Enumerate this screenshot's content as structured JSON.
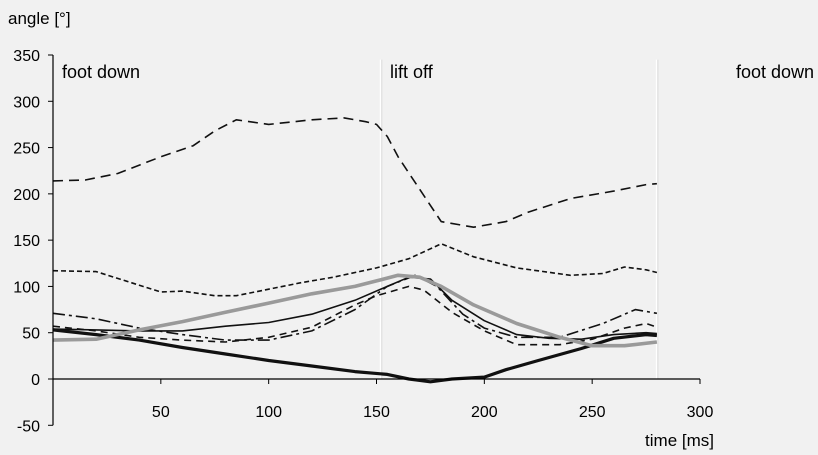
{
  "chart_data": {
    "type": "line",
    "title": "",
    "ylabel": "angle [°]",
    "xlabel": "time [ms]",
    "xlim": [
      0,
      300
    ],
    "ylim": [
      -50,
      350
    ],
    "xticks": [
      50,
      100,
      150,
      200,
      250,
      300
    ],
    "yticks": [
      350,
      300,
      250,
      200,
      150,
      100,
      50,
      0,
      -50
    ],
    "grid": false,
    "annotations": [
      {
        "text": "foot down",
        "x": 5
      },
      {
        "text": "lift off",
        "x": 155
      },
      {
        "text": "foot down",
        "x": 280
      }
    ],
    "event_lines": [
      152,
      280
    ],
    "series": [
      {
        "style": "long-dash",
        "color": "#111111",
        "points": [
          [
            0,
            214
          ],
          [
            15,
            215
          ],
          [
            30,
            222
          ],
          [
            50,
            240
          ],
          [
            65,
            252
          ],
          [
            75,
            268
          ],
          [
            85,
            280
          ],
          [
            100,
            275
          ],
          [
            120,
            280
          ],
          [
            135,
            282
          ],
          [
            145,
            278
          ],
          [
            150,
            275
          ],
          [
            155,
            262
          ],
          [
            160,
            240
          ],
          [
            170,
            205
          ],
          [
            180,
            170
          ],
          [
            195,
            164
          ],
          [
            210,
            170
          ],
          [
            220,
            180
          ],
          [
            240,
            195
          ],
          [
            260,
            203
          ],
          [
            275,
            210
          ],
          [
            280,
            211
          ]
        ]
      },
      {
        "style": "short-dash",
        "color": "#111111",
        "points": [
          [
            0,
            117
          ],
          [
            20,
            116
          ],
          [
            35,
            105
          ],
          [
            50,
            94
          ],
          [
            60,
            95
          ],
          [
            75,
            90
          ],
          [
            85,
            90
          ],
          [
            100,
            97
          ],
          [
            115,
            104
          ],
          [
            130,
            110
          ],
          [
            150,
            120
          ],
          [
            165,
            130
          ],
          [
            180,
            146
          ],
          [
            195,
            132
          ],
          [
            215,
            120
          ],
          [
            240,
            112
          ],
          [
            255,
            114
          ],
          [
            265,
            121
          ],
          [
            275,
            118
          ],
          [
            280,
            115
          ]
        ]
      },
      {
        "style": "solid",
        "color": "#111111",
        "points": [
          [
            0,
            54
          ],
          [
            20,
            53
          ],
          [
            40,
            52
          ],
          [
            60,
            52
          ],
          [
            80,
            57
          ],
          [
            100,
            61
          ],
          [
            120,
            70
          ],
          [
            140,
            85
          ],
          [
            155,
            100
          ],
          [
            165,
            110
          ],
          [
            175,
            108
          ],
          [
            185,
            85
          ],
          [
            200,
            63
          ],
          [
            215,
            48
          ],
          [
            230,
            44
          ],
          [
            245,
            43
          ],
          [
            260,
            48
          ],
          [
            275,
            50
          ],
          [
            280,
            49
          ]
        ]
      },
      {
        "style": "dash-dot",
        "color": "#111111",
        "points": [
          [
            0,
            71
          ],
          [
            20,
            65
          ],
          [
            40,
            55
          ],
          [
            60,
            48
          ],
          [
            80,
            42
          ],
          [
            100,
            42
          ],
          [
            120,
            52
          ],
          [
            140,
            75
          ],
          [
            155,
            100
          ],
          [
            168,
            112
          ],
          [
            178,
            100
          ],
          [
            190,
            70
          ],
          [
            200,
            55
          ],
          [
            215,
            45
          ],
          [
            235,
            45
          ],
          [
            255,
            60
          ],
          [
            270,
            75
          ],
          [
            280,
            71
          ]
        ]
      },
      {
        "style": "dash",
        "color": "#111111",
        "points": [
          [
            0,
            57
          ],
          [
            20,
            52
          ],
          [
            40,
            45
          ],
          [
            60,
            42
          ],
          [
            80,
            40
          ],
          [
            100,
            45
          ],
          [
            120,
            56
          ],
          [
            140,
            80
          ],
          [
            150,
            90
          ],
          [
            165,
            100
          ],
          [
            172,
            96
          ],
          [
            185,
            72
          ],
          [
            200,
            52
          ],
          [
            215,
            37
          ],
          [
            235,
            37
          ],
          [
            250,
            43
          ],
          [
            265,
            55
          ],
          [
            275,
            60
          ],
          [
            280,
            56
          ]
        ]
      },
      {
        "style": "thick-solid",
        "color": "#111111",
        "points": [
          [
            0,
            53
          ],
          [
            20,
            48
          ],
          [
            40,
            42
          ],
          [
            60,
            34
          ],
          [
            80,
            27
          ],
          [
            100,
            20
          ],
          [
            120,
            14
          ],
          [
            140,
            8
          ],
          [
            155,
            5
          ],
          [
            165,
            0
          ],
          [
            175,
            -3
          ],
          [
            185,
            0
          ],
          [
            200,
            2
          ],
          [
            210,
            10
          ],
          [
            225,
            20
          ],
          [
            245,
            33
          ],
          [
            260,
            44
          ],
          [
            275,
            48
          ],
          [
            280,
            47
          ]
        ]
      },
      {
        "style": "gray",
        "color": "#9a9a9a",
        "points": [
          [
            0,
            42
          ],
          [
            20,
            43
          ],
          [
            40,
            53
          ],
          [
            60,
            62
          ],
          [
            80,
            72
          ],
          [
            100,
            82
          ],
          [
            120,
            92
          ],
          [
            140,
            100
          ],
          [
            150,
            106
          ],
          [
            160,
            112
          ],
          [
            170,
            110
          ],
          [
            180,
            100
          ],
          [
            195,
            80
          ],
          [
            215,
            60
          ],
          [
            235,
            45
          ],
          [
            250,
            36
          ],
          [
            265,
            36
          ],
          [
            280,
            40
          ]
        ]
      }
    ]
  }
}
